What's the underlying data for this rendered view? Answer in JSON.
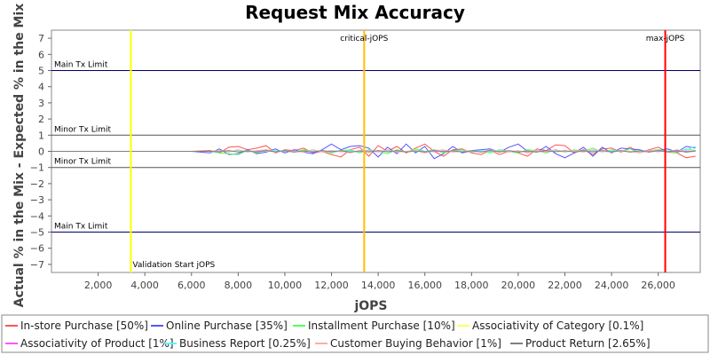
{
  "chart_data": {
    "type": "line",
    "title": "Request Mix Accuracy",
    "xlabel": "jOPS",
    "ylabel": "Actual % in the Mix - Expected % in the Mix",
    "xlim": [
      0,
      27800
    ],
    "ylim": [
      -7.5,
      7.5
    ],
    "x_ticks": [
      2000,
      4000,
      6000,
      8000,
      10000,
      12000,
      14000,
      16000,
      18000,
      20000,
      22000,
      24000,
      26000
    ],
    "x_tick_labels": [
      "2,000",
      "4,000",
      "6,000",
      "8,000",
      "10,000",
      "12,000",
      "14,000",
      "16,000",
      "18,000",
      "20,000",
      "22,000",
      "24,000",
      "26,000"
    ],
    "y_ticks": [
      -7,
      -6,
      -5,
      -4,
      -3,
      -2,
      -1,
      0,
      1,
      2,
      3,
      4,
      5,
      6,
      7
    ],
    "y_tick_labels": [
      "−7",
      "−6",
      "−5",
      "−4",
      "−3",
      "−2",
      "−1",
      "0",
      "1",
      "2",
      "3",
      "4",
      "5",
      "6",
      "7"
    ],
    "grid": false,
    "legend_position": "bottom",
    "horizontal_limits": [
      {
        "label": "Main Tx Limit",
        "y": 5,
        "color": "#000066"
      },
      {
        "label": "Minor Tx Limit",
        "y": 1,
        "color": "#555555"
      },
      {
        "label": "Minor Tx Limit",
        "y": -1,
        "color": "#555555"
      },
      {
        "label": "Main Tx Limit",
        "y": -5,
        "color": "#000066"
      }
    ],
    "vertical_markers": [
      {
        "label": "Validation Start jOPS",
        "x": 3400,
        "color": "#ffff00"
      },
      {
        "label": "critical-jOPS",
        "x": 13400,
        "color": "#ffc000"
      },
      {
        "label": "max-jOPS",
        "x": 26300,
        "color": "#ff0000"
      }
    ],
    "x": [
      0,
      2000,
      4000,
      6000,
      6800,
      7200,
      7600,
      8000,
      8400,
      8800,
      9200,
      9600,
      10000,
      10400,
      10800,
      11200,
      11600,
      12000,
      12400,
      12800,
      13200,
      13600,
      14000,
      14400,
      14800,
      15200,
      15600,
      16000,
      16400,
      16800,
      17200,
      17600,
      18000,
      18400,
      18800,
      19200,
      19600,
      20000,
      20400,
      20800,
      21200,
      21600,
      22000,
      22400,
      22800,
      23200,
      23600,
      24000,
      24400,
      24800,
      25200,
      25600,
      26000,
      26400,
      26800,
      27200,
      27600
    ],
    "series": [
      {
        "name": "In-store Purchase [50%]",
        "color": "#ff5555",
        "values": [
          0,
          0,
          0,
          0,
          0.05,
          -0.1,
          0.25,
          0.3,
          0.1,
          0.2,
          0.35,
          -0.1,
          0.1,
          0.05,
          0.2,
          -0.1,
          0,
          -0.2,
          -0.35,
          0.1,
          0.25,
          -0.3,
          0.35,
          0,
          0.3,
          -0.1,
          0.2,
          0.45,
          0,
          -0.3,
          0.1,
          0.15,
          -0.1,
          -0.2,
          0.05,
          -0.2,
          0,
          -0.1,
          -0.3,
          0.15,
          0.05,
          0.4,
          0.35,
          -0.1,
          0.1,
          -0.2,
          0.15,
          0.2,
          -0.05,
          0.25,
          -0.1,
          0.1,
          0.25,
          -0.05,
          -0.1,
          -0.4,
          -0.3
        ]
      },
      {
        "name": "Online Purchase [35%]",
        "color": "#5555ff",
        "values": [
          0,
          0,
          0,
          0,
          -0.1,
          0.15,
          -0.2,
          -0.15,
          0.1,
          -0.15,
          -0.05,
          0.15,
          -0.1,
          0.1,
          -0.05,
          -0.15,
          0.1,
          0.45,
          0.1,
          0.3,
          0.35,
          0.2,
          -0.35,
          0.25,
          -0.15,
          0.45,
          -0.1,
          0.3,
          -0.45,
          -0.15,
          0.3,
          -0.1,
          0.05,
          0.1,
          0.15,
          -0.05,
          0.25,
          0.45,
          0,
          -0.05,
          0.3,
          -0.15,
          -0.4,
          -0.1,
          0.25,
          -0.3,
          0.25,
          -0.1,
          0.2,
          0.15,
          0.1,
          -0.05,
          0.05,
          0.15,
          -0.05,
          0.3,
          0.2
        ]
      },
      {
        "name": "Installment Purchase [10%]",
        "color": "#55ff55",
        "values": [
          0,
          0,
          0,
          0,
          0,
          -0.1,
          -0.15,
          -0.2,
          0.05,
          -0.1,
          0.1,
          0,
          0.05,
          -0.05,
          0.1,
          0,
          0.05,
          -0.1,
          0.05,
          0.1,
          -0.1,
          0.1,
          0,
          -0.15,
          0.1,
          -0.05,
          0.15,
          0,
          0.1,
          -0.1,
          0.05,
          0.1,
          -0.05,
          0.05,
          -0.1,
          0.1,
          0,
          -0.1,
          0.1,
          0.05,
          -0.1,
          0.1,
          -0.05,
          0.1,
          0,
          0.2,
          -0.05,
          0.1,
          0,
          0.15,
          -0.1,
          0.05,
          0.1,
          0,
          -0.1,
          0.15,
          0.05
        ]
      },
      {
        "name": "Associativity of Category [0.1%]",
        "color": "#ffff55",
        "values": [
          0,
          0,
          0,
          0,
          0,
          0,
          0,
          0,
          0,
          0,
          0,
          0,
          0,
          0,
          0,
          0,
          0,
          0,
          0,
          0,
          0,
          0,
          0,
          0,
          0,
          0,
          0,
          0,
          0,
          0,
          0,
          0,
          0,
          0,
          0,
          0,
          0,
          0,
          0,
          0,
          0,
          0,
          0,
          0,
          0,
          0,
          0,
          0,
          0,
          0,
          0,
          0,
          0,
          0,
          0,
          0,
          0
        ]
      },
      {
        "name": "Associativity of Product [1%]",
        "color": "#ff55ff",
        "values": [
          0,
          0,
          0,
          0,
          0,
          0.02,
          -0.02,
          0.03,
          -0.02,
          0.02,
          0.03,
          -0.03,
          0.02,
          -0.02,
          0.02,
          0,
          -0.02,
          0.03,
          -0.02,
          0.02,
          -0.03,
          0.02,
          0.03,
          -0.02,
          0.02,
          -0.02,
          0.03,
          0,
          -0.02,
          0.02,
          -0.03,
          0.02,
          0.02,
          -0.02,
          0.03,
          -0.02,
          0.02,
          0,
          -0.03,
          0.02,
          -0.02,
          0.03,
          -0.02,
          0.02,
          0,
          -0.02,
          0.03,
          -0.02,
          0.02,
          -0.03,
          0.02,
          0.02,
          -0.02,
          0.03,
          -0.02,
          0.02,
          0
        ]
      },
      {
        "name": "Business Report [0.25%]",
        "color": "#55ffff",
        "values": [
          0,
          0,
          0,
          0,
          0,
          0.03,
          -0.03,
          0.02,
          0.05,
          -0.03,
          0.02,
          0.04,
          -0.02,
          0.03,
          -0.03,
          0.02,
          0.03,
          -0.04,
          0.02,
          0.03,
          -0.02,
          0.04,
          -0.03,
          0.02,
          0.03,
          -0.03,
          0.02,
          -0.02,
          0.04,
          -0.03,
          0.02,
          0.03,
          -0.02,
          0.04,
          -0.03,
          0.02,
          0.03,
          -0.04,
          0.02,
          -0.03,
          0.04,
          0.02,
          -0.03,
          0.03,
          -0.02,
          0.04,
          -0.03,
          0.02,
          0.03,
          -0.02,
          0.04,
          -0.03,
          0.02,
          0.03,
          0.05,
          0.1,
          0.3
        ]
      },
      {
        "name": "Customer Buying Behavior [1%]",
        "color": "#ffaaaa",
        "values": [
          0,
          0,
          0,
          0,
          0,
          0.05,
          -0.05,
          0.1,
          -0.05,
          0.05,
          0.1,
          -0.05,
          0.05,
          0,
          -0.05,
          0.1,
          -0.05,
          0.05,
          0,
          -0.1,
          0.05,
          0.05,
          -0.05,
          0.1,
          -0.05,
          0,
          0.05,
          -0.1,
          0.05,
          0.1,
          -0.05,
          0,
          0.05,
          -0.05,
          0.1,
          0,
          -0.05,
          0.05,
          -0.1,
          0.05,
          0,
          0.1,
          -0.05,
          0.05,
          -0.05,
          0.1,
          0,
          -0.05,
          0.05,
          0,
          -0.1,
          0.05,
          0.05,
          -0.05,
          0.1,
          -0.05,
          0
        ]
      },
      {
        "name": "Product Return [2.65%]",
        "color": "#808080",
        "values": [
          0,
          0,
          0,
          0,
          0,
          -0.03,
          0.05,
          -0.05,
          0.03,
          -0.04,
          0.05,
          -0.03,
          0.04,
          -0.05,
          0.03,
          -0.04,
          0.05,
          -0.03,
          0.04,
          -0.05,
          0.03,
          -0.04,
          0.05,
          -0.03,
          0.04,
          -0.05,
          0.03,
          -0.04,
          0.05,
          -0.03,
          0.04,
          -0.05,
          0.03,
          -0.04,
          0.05,
          -0.03,
          0.04,
          -0.05,
          0.03,
          -0.04,
          0.05,
          -0.03,
          0.04,
          -0.05,
          0.03,
          -0.04,
          0.05,
          -0.03,
          0.04,
          -0.05,
          0.03,
          -0.04,
          0.05,
          -0.03,
          0.04,
          -0.05,
          0.03
        ]
      }
    ]
  }
}
